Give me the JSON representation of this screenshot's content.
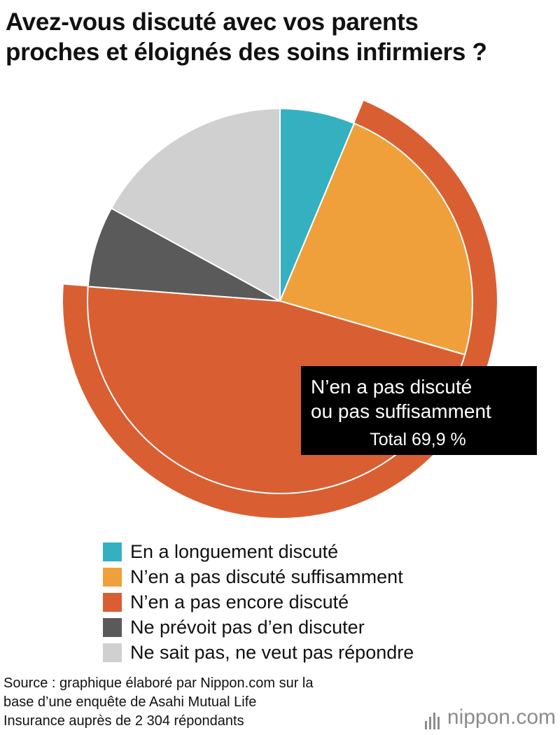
{
  "title": {
    "line1": "Avez-vous discuté avec vos parents",
    "line2": "proches et éloignés des soins infirmiers ?"
  },
  "chart_data": {
    "type": "pie",
    "title": "Avez-vous discuté avec vos parents proches et éloignés des soins infirmiers ?",
    "slices": [
      {
        "label": "En a longuement discuté",
        "value": 6.3,
        "color": "#35b0c0"
      },
      {
        "label": "N’en a pas discuté suffisamment",
        "value": 23.2,
        "color": "#f0a03a"
      },
      {
        "label": "N’en a pas encore discuté",
        "value": 46.7,
        "color": "#d95f33"
      },
      {
        "label": "Ne prévoit pas d’en discuter",
        "value": 6.8,
        "color": "#5a5a5a"
      },
      {
        "label": "Ne sait pas, ne veut pas répondre",
        "value": 17.0,
        "color": "#d0d0d0"
      }
    ],
    "annotation": {
      "line1": "N’en a pas discuté",
      "line2": "ou pas suffisamment",
      "total": "Total 69,9 %",
      "value": 69.9,
      "color": "#d95f33"
    },
    "legend_position": "bottom"
  },
  "source": {
    "line1": "Source : graphique élaboré par Nippon.com sur la",
    "line2": "base d’une enquête de Asahi Mutual Life",
    "line3": "Insurance auprès de 2 304 répondants"
  },
  "brand": {
    "name": "nippon",
    "suffix": ".com"
  }
}
